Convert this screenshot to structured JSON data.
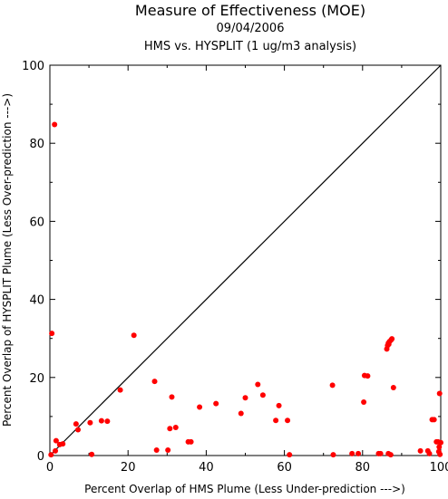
{
  "chart_data": {
    "type": "scatter",
    "title": "Measure of Effectiveness (MOE)",
    "subtitle": "09/04/2006",
    "subtitle2": "HMS vs. HYSPLIT  (1 ug/m3 analysis)",
    "xlabel": "Percent Overlap of HMS Plume (Less Under-prediction --->)",
    "ylabel": "Percent Overlap of HYSPLIT Plume (Less Over-prediction --->)",
    "xlim": [
      0,
      100
    ],
    "ylim": [
      0,
      100
    ],
    "xticks": [
      "0",
      "20",
      "40",
      "60",
      "80",
      "100"
    ],
    "yticks": [
      "0",
      "20",
      "40",
      "60",
      "80",
      "100"
    ],
    "grid": false,
    "reference_line": "y = x",
    "point_color": "#ff0000",
    "points": [
      [
        0.3,
        0.2
      ],
      [
        0.5,
        31.3
      ],
      [
        1.2,
        84.8
      ],
      [
        1.4,
        1.2
      ],
      [
        1.6,
        3.8
      ],
      [
        2.5,
        2.8
      ],
      [
        3.3,
        3.0
      ],
      [
        6.7,
        8.1
      ],
      [
        7.2,
        6.6
      ],
      [
        10.3,
        8.4
      ],
      [
        10.7,
        0.3
      ],
      [
        13.2,
        8.9
      ],
      [
        14.7,
        8.8
      ],
      [
        18.0,
        16.8
      ],
      [
        21.5,
        30.8
      ],
      [
        26.8,
        19.0
      ],
      [
        27.3,
        1.4
      ],
      [
        30.2,
        1.4
      ],
      [
        30.7,
        6.9
      ],
      [
        31.2,
        15.0
      ],
      [
        32.2,
        7.2
      ],
      [
        35.4,
        3.5
      ],
      [
        36.1,
        3.5
      ],
      [
        38.3,
        12.4
      ],
      [
        42.5,
        13.3
      ],
      [
        48.9,
        10.8
      ],
      [
        50.0,
        14.8
      ],
      [
        53.2,
        18.2
      ],
      [
        54.5,
        15.5
      ],
      [
        57.8,
        9.0
      ],
      [
        58.6,
        12.8
      ],
      [
        60.8,
        9.0
      ],
      [
        61.3,
        0.2
      ],
      [
        72.3,
        18.0
      ],
      [
        72.5,
        0.2
      ],
      [
        77.3,
        0.5
      ],
      [
        78.9,
        0.5
      ],
      [
        80.3,
        13.7
      ],
      [
        80.5,
        20.5
      ],
      [
        81.3,
        20.4
      ],
      [
        84.1,
        0.5
      ],
      [
        84.6,
        0.5
      ],
      [
        86.2,
        27.3
      ],
      [
        86.4,
        28.2
      ],
      [
        86.6,
        28.8
      ],
      [
        86.7,
        28.5
      ],
      [
        86.9,
        29.2
      ],
      [
        87.3,
        29.6
      ],
      [
        87.5,
        29.9
      ],
      [
        86.6,
        0.5
      ],
      [
        87.2,
        0.2
      ],
      [
        87.9,
        17.4
      ],
      [
        94.8,
        1.2
      ],
      [
        96.7,
        1.2
      ],
      [
        97.1,
        0.5
      ],
      [
        97.8,
        9.2
      ],
      [
        98.3,
        9.2
      ],
      [
        98.9,
        3.5
      ],
      [
        99.3,
        3.5
      ],
      [
        99.6,
        2.2
      ],
      [
        99.7,
        15.9
      ],
      [
        100.0,
        3.3
      ],
      [
        99.8,
        0.3
      ],
      [
        99.5,
        1.0
      ]
    ]
  }
}
